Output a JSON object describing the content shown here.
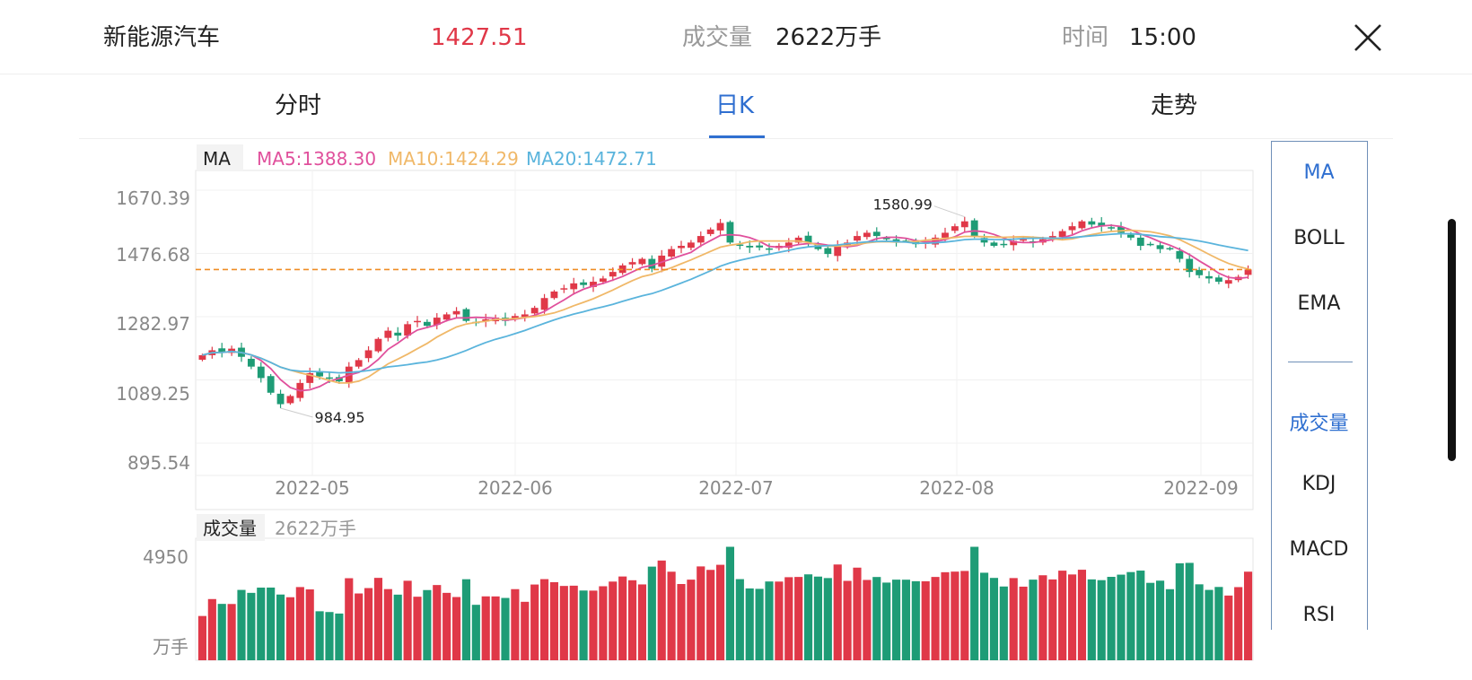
{
  "header": {
    "name": "新能源汽车",
    "price": "1427.51",
    "volume_label": "成交量",
    "volume": "2622万手",
    "time_label": "时间",
    "time": "15:00"
  },
  "tabs": [
    {
      "label": "分时"
    },
    {
      "label": "日K"
    },
    {
      "label": "走势"
    }
  ],
  "indicators": [
    {
      "label": "MA"
    },
    {
      "label": "BOLL"
    },
    {
      "label": "EMA"
    },
    {
      "label": "成交量"
    },
    {
      "label": "KDJ"
    },
    {
      "label": "MACD"
    },
    {
      "label": "RSI"
    }
  ],
  "colors": {
    "up": "#e03848",
    "down": "#1e9c76",
    "ma5": "#e0509c",
    "ma10": "#f0b868",
    "ma20": "#5ab4dc",
    "accent": "#2f6fd0",
    "last_price_line": "#ef8c24"
  },
  "chart_data": {
    "type": "candlestick",
    "legend": {
      "ma": "MA",
      "ma5": "MA5:1388.30",
      "ma10": "MA10:1424.29",
      "ma20": "MA20:1472.71"
    },
    "y_ticks": [
      "1670.39",
      "1476.68",
      "1282.97",
      "1089.25",
      "895.54"
    ],
    "ylim": [
      895.54,
      1670.39
    ],
    "x_ticks": [
      "2022-05",
      "2022-06",
      "2022-07",
      "2022-08",
      "2022-09"
    ],
    "last_price": 1427.51,
    "max_label": "1580.99",
    "min_label": "984.95",
    "closes": [
      1165,
      1180,
      1175,
      1185,
      1160,
      1130,
      1095,
      1050,
      1015,
      1040,
      1080,
      1110,
      1100,
      1095,
      1085,
      1130,
      1150,
      1180,
      1215,
      1240,
      1225,
      1260,
      1270,
      1255,
      1280,
      1290,
      1300,
      1270,
      1265,
      1275,
      1280,
      1270,
      1285,
      1290,
      1310,
      1340,
      1360,
      1370,
      1385,
      1380,
      1390,
      1400,
      1420,
      1440,
      1450,
      1460,
      1430,
      1470,
      1490,
      1500,
      1510,
      1530,
      1550,
      1570,
      1510,
      1500,
      1495,
      1495,
      1490,
      1500,
      1510,
      1525,
      1510,
      1490,
      1475,
      1500,
      1510,
      1530,
      1540,
      1530,
      1520,
      1510,
      1515,
      1505,
      1510,
      1525,
      1540,
      1560,
      1575,
      1530,
      1510,
      1500,
      1505,
      1515,
      1520,
      1510,
      1520,
      1530,
      1545,
      1560,
      1575,
      1565,
      1560,
      1555,
      1540,
      1525,
      1500,
      1505,
      1490,
      1490,
      1460,
      1420,
      1410,
      1400,
      1390,
      1395,
      1405,
      1427.51
    ],
    "volume_label": "成交量",
    "volume_value": "2622万手",
    "volume_y_tick": "4950",
    "volume_unit": "万手",
    "volume_ylim": [
      0,
      6000
    ]
  }
}
